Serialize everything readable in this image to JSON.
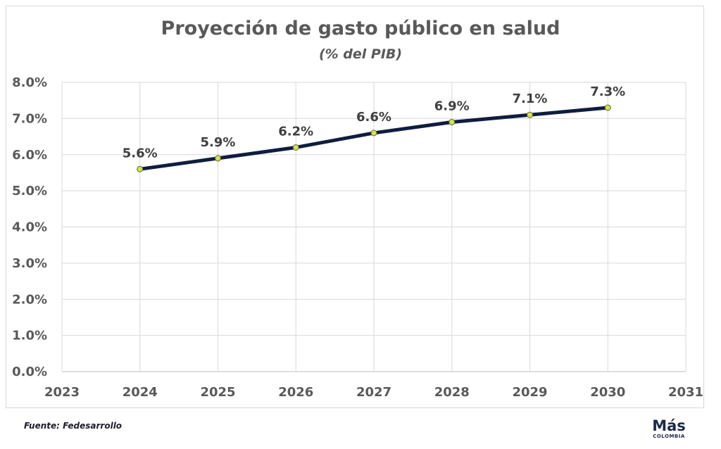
{
  "chart_data": {
    "type": "line",
    "title": "Proyección de gasto público en salud",
    "subtitle": "(% del PIB)",
    "xlabel": "",
    "ylabel": "",
    "x": [
      2024,
      2025,
      2026,
      2027,
      2028,
      2029,
      2030
    ],
    "series": [
      {
        "values": [
          5.6,
          5.9,
          6.2,
          6.6,
          6.9,
          7.1,
          7.3
        ],
        "data_labels": [
          "5.6%",
          "5.9%",
          "6.2%",
          "6.6%",
          "6.9%",
          "7.1%",
          "7.3%"
        ],
        "line_color": "#0f1d3f",
        "marker_color": "#d4e157"
      }
    ],
    "xlim": [
      2023,
      2031
    ],
    "ylim": [
      0,
      8
    ],
    "x_ticks": [
      "2023",
      "2024",
      "2025",
      "2026",
      "2027",
      "2028",
      "2029",
      "2030",
      "2031"
    ],
    "y_ticks": [
      "0.0%",
      "1.0%",
      "2.0%",
      "3.0%",
      "4.0%",
      "5.0%",
      "6.0%",
      "7.0%",
      "8.0%"
    ],
    "grid": true,
    "legend": "none"
  },
  "footer": {
    "source": "Fuente: Fedesarrollo",
    "logo_main": "Más",
    "logo_sub": "COLOMBIA"
  }
}
